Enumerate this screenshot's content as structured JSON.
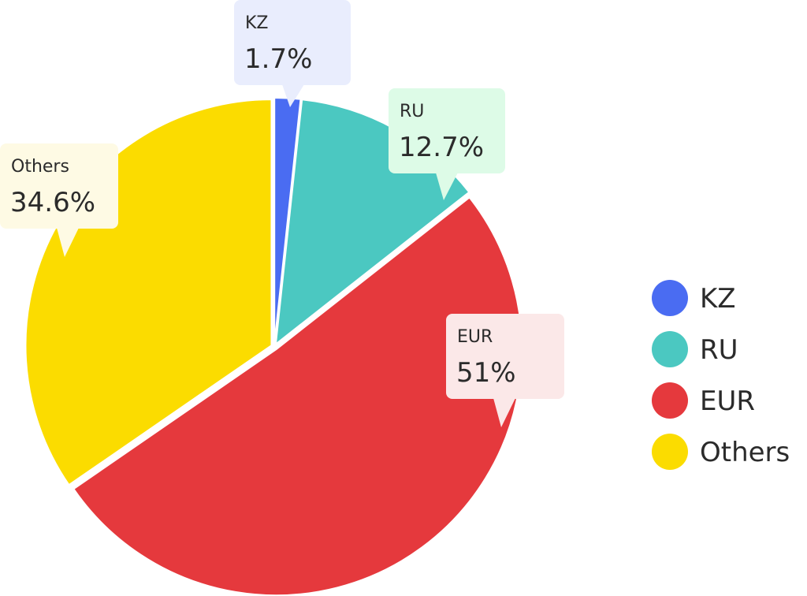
{
  "chart_data": {
    "type": "pie",
    "slices": [
      {
        "label": "KZ",
        "value": 1.7,
        "display": "1.7%",
        "color": "#4a6cf2",
        "callout_bg": "#e9edfd"
      },
      {
        "label": "RU",
        "value": 12.7,
        "display": "12.7%",
        "color": "#4bc8c1",
        "callout_bg": "#ddfbe7"
      },
      {
        "label": "EUR",
        "value": 51,
        "display": "51%",
        "color": "#e5393d",
        "callout_bg": "#fbe8e8"
      },
      {
        "label": "Others",
        "value": 34.6,
        "display": "34.6%",
        "color": "#fbdc00",
        "callout_bg": "#fefae4"
      }
    ],
    "start_angle_deg": 0,
    "direction": "clockwise",
    "legend_position": "right",
    "title": ""
  }
}
